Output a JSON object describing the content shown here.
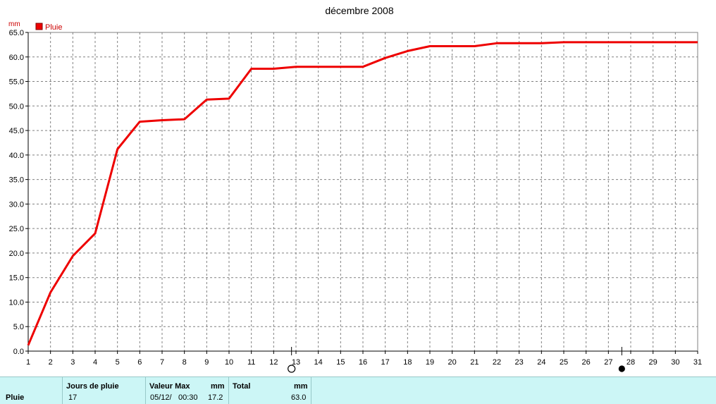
{
  "chart_data": {
    "type": "line",
    "title": "décembre 2008",
    "ylabel": "mm",
    "ylim": [
      0,
      65
    ],
    "y_ticks": [
      "0.0",
      "5.0",
      "10.0",
      "15.0",
      "20.0",
      "25.0",
      "30.0",
      "35.0",
      "40.0",
      "45.0",
      "50.0",
      "55.0",
      "60.0",
      "65.0"
    ],
    "x_ticks": [
      "1",
      "2",
      "3",
      "4",
      "5",
      "6",
      "7",
      "8",
      "9",
      "10",
      "11",
      "12",
      "13",
      "14",
      "15",
      "16",
      "17",
      "18",
      "19",
      "20",
      "21",
      "22",
      "23",
      "24",
      "25",
      "26",
      "27",
      "28",
      "29",
      "30",
      "31"
    ],
    "xlim": [
      1,
      31
    ],
    "grid": true,
    "legend_position": "top-left",
    "series": [
      {
        "name": "Pluie",
        "color": "#ee0000",
        "x": [
          1,
          2,
          3,
          4,
          5,
          6,
          7,
          8,
          9,
          10,
          11,
          12,
          13,
          14,
          15,
          16,
          17,
          18,
          19,
          20,
          21,
          22,
          23,
          24,
          25,
          26,
          27,
          28,
          29,
          30,
          31
        ],
        "values": [
          1.2,
          12.0,
          19.4,
          24.0,
          41.2,
          46.8,
          47.1,
          47.3,
          51.3,
          51.5,
          57.6,
          57.6,
          58.0,
          58.0,
          58.0,
          58.0,
          59.8,
          61.2,
          62.2,
          62.2,
          62.2,
          62.8,
          62.8,
          62.8,
          63.0,
          63.0,
          63.0,
          63.0,
          63.0,
          63.0,
          63.0
        ]
      }
    ],
    "moon_phases": [
      {
        "day": 12.8,
        "phase": "full-moon"
      },
      {
        "day": 27.6,
        "phase": "new-moon"
      }
    ]
  },
  "summary": {
    "row_label": "Pluie",
    "jours_header": "Jours de pluie",
    "jours_value": "17",
    "max_header": "Valeur Max",
    "max_unit": "mm",
    "max_date": "05/12/",
    "max_time": "00:30",
    "max_value": "17.2",
    "total_header": "Total",
    "total_unit": "mm",
    "total_value": "63.0"
  }
}
